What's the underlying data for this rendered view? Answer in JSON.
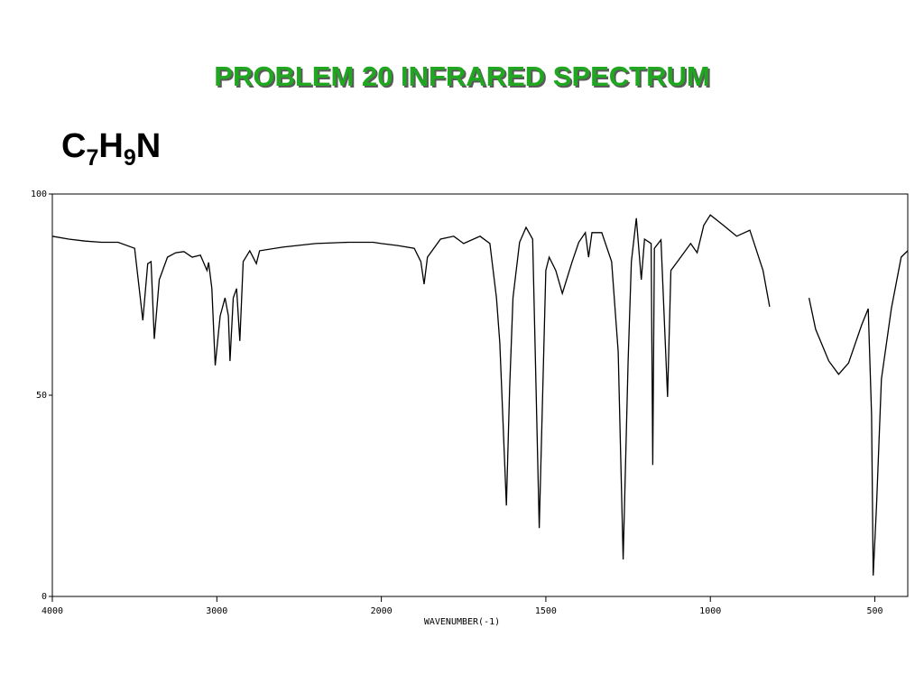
{
  "title": "PROBLEM  20   INFRARED SPECTRUM",
  "formula": [
    "C",
    "7",
    "H",
    "9",
    "N"
  ],
  "chart_data": {
    "type": "line",
    "xlabel": "WAVENUMBER(-1)",
    "xlim": [
      4000,
      400
    ],
    "x_scale_break": 2000,
    "xticks": [
      4000,
      3000,
      2000,
      1500,
      1000,
      500
    ],
    "ylim": [
      0,
      100
    ],
    "yticks": [
      0,
      50,
      100
    ],
    "grid": false,
    "color": "#000000",
    "x": [
      4000,
      3900,
      3800,
      3700,
      3600,
      3500,
      3450,
      3420,
      3400,
      3380,
      3350,
      3300,
      3250,
      3200,
      3150,
      3100,
      3060,
      3050,
      3030,
      3010,
      2980,
      2950,
      2930,
      2920,
      2900,
      2880,
      2860,
      2840,
      2800,
      2760,
      2740,
      2600,
      2400,
      2200,
      2050,
      2000,
      1950,
      1900,
      1880,
      1870,
      1860,
      1820,
      1780,
      1750,
      1700,
      1670,
      1650,
      1640,
      1620,
      1610,
      1600,
      1580,
      1560,
      1540,
      1520,
      1500,
      1490,
      1470,
      1450,
      1420,
      1400,
      1380,
      1370,
      1360,
      1330,
      1300,
      1280,
      1265,
      1250,
      1240,
      1225,
      1210,
      1200,
      1180,
      1175,
      1170,
      1150,
      1130,
      1120,
      1100,
      1060,
      1040,
      1020,
      1000,
      960,
      920,
      880,
      840,
      820,
      760,
      700,
      680,
      640,
      610,
      580,
      540,
      520,
      510,
      505,
      495,
      480,
      450,
      420,
      400
    ],
    "values": [
      89.5,
      88.8,
      88.3,
      88,
      88,
      86.5,
      68.6,
      82.7,
      83.2,
      64,
      78.7,
      84.3,
      85.4,
      85.7,
      84.3,
      84.8,
      81,
      83,
      76.5,
      57.4,
      69.7,
      74.2,
      69.7,
      58.5,
      74.2,
      76.5,
      63.5,
      83.2,
      85.9,
      82.7,
      85.9,
      86.8,
      87.7,
      88,
      88,
      87.7,
      87.2,
      86.5,
      83.2,
      77.6,
      84.3,
      88.8,
      89.5,
      87.7,
      89.5,
      87.7,
      74.2,
      63,
      22.6,
      51.8,
      74.2,
      88,
      91.7,
      88.8,
      17,
      81,
      84.3,
      81,
      75.3,
      83.2,
      88,
      90.4,
      84.3,
      90.4,
      90.4,
      83.2,
      60.8,
      9.2,
      58.5,
      83.2,
      94,
      78.7,
      88.8,
      87.7,
      32.7,
      86.5,
      88.6,
      49.6,
      81,
      83.2,
      87.7,
      85.4,
      92.2,
      94.8,
      92.2,
      89.5,
      91,
      81,
      72,
      null,
      74.2,
      66.4,
      58.5,
      55.2,
      58,
      67.5,
      71.5,
      45,
      5.2,
      22.6,
      54,
      71.5,
      84.3,
      85.9
    ]
  }
}
